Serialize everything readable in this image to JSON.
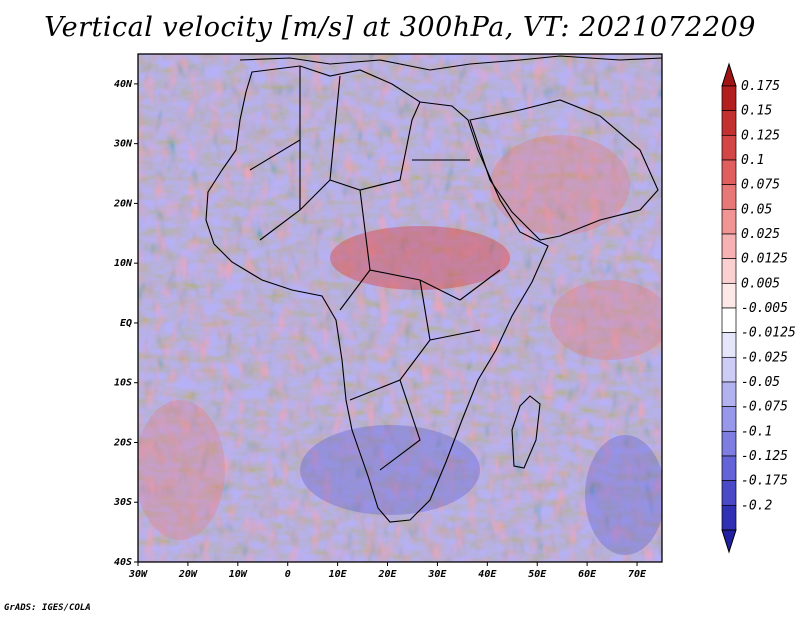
{
  "title": "Vertical velocity [m/s] at 300hPa, VT: 2021072209",
  "credit": "GrADS: IGES/COLA",
  "map": {
    "lon_range": [
      -30,
      75
    ],
    "lat_range": [
      -40,
      45
    ],
    "lon_ticks": [
      {
        "value": -30,
        "label": "30W"
      },
      {
        "value": -20,
        "label": "20W"
      },
      {
        "value": -10,
        "label": "10W"
      },
      {
        "value": 0,
        "label": "0"
      },
      {
        "value": 10,
        "label": "10E"
      },
      {
        "value": 20,
        "label": "20E"
      },
      {
        "value": 30,
        "label": "30E"
      },
      {
        "value": 40,
        "label": "40E"
      },
      {
        "value": 50,
        "label": "50E"
      },
      {
        "value": 60,
        "label": "60E"
      },
      {
        "value": 70,
        "label": "70E"
      }
    ],
    "lat_ticks": [
      {
        "value": 40,
        "label": "40N"
      },
      {
        "value": 30,
        "label": "30N"
      },
      {
        "value": 20,
        "label": "20N"
      },
      {
        "value": 10,
        "label": "10N"
      },
      {
        "value": 0,
        "label": "EQ"
      },
      {
        "value": -10,
        "label": "10S"
      },
      {
        "value": -20,
        "label": "20S"
      },
      {
        "value": -30,
        "label": "30S"
      },
      {
        "value": -40,
        "label": "40S"
      }
    ]
  },
  "colorbar": {
    "levels": [
      {
        "label": "0.175",
        "color": "#b31f1f"
      },
      {
        "label": "0.15",
        "color": "#c43030"
      },
      {
        "label": "0.125",
        "color": "#d44545"
      },
      {
        "label": "0.1",
        "color": "#e05e5e"
      },
      {
        "label": "0.075",
        "color": "#e87878"
      },
      {
        "label": "0.05",
        "color": "#f09494"
      },
      {
        "label": "0.025",
        "color": "#f6b2b2"
      },
      {
        "label": "0.0125",
        "color": "#fad0d0"
      },
      {
        "label": "0.005",
        "color": "#fde8e8"
      },
      {
        "label": "-0.005",
        "color": "#ffffff"
      },
      {
        "label": "-0.0125",
        "color": "#e6e6fb"
      },
      {
        "label": "-0.025",
        "color": "#ccccf6"
      },
      {
        "label": "-0.05",
        "color": "#b2b2f0"
      },
      {
        "label": "-0.075",
        "color": "#9898ea"
      },
      {
        "label": "-0.1",
        "color": "#7e7ee2"
      },
      {
        "label": "-0.125",
        "color": "#6464d8"
      },
      {
        "label": "-0.175",
        "color": "#4a4ac8"
      },
      {
        "label": "-0.2",
        "color": "#3030b4"
      }
    ],
    "top_color": "#a01414",
    "bottom_color": "#2020a0"
  }
}
